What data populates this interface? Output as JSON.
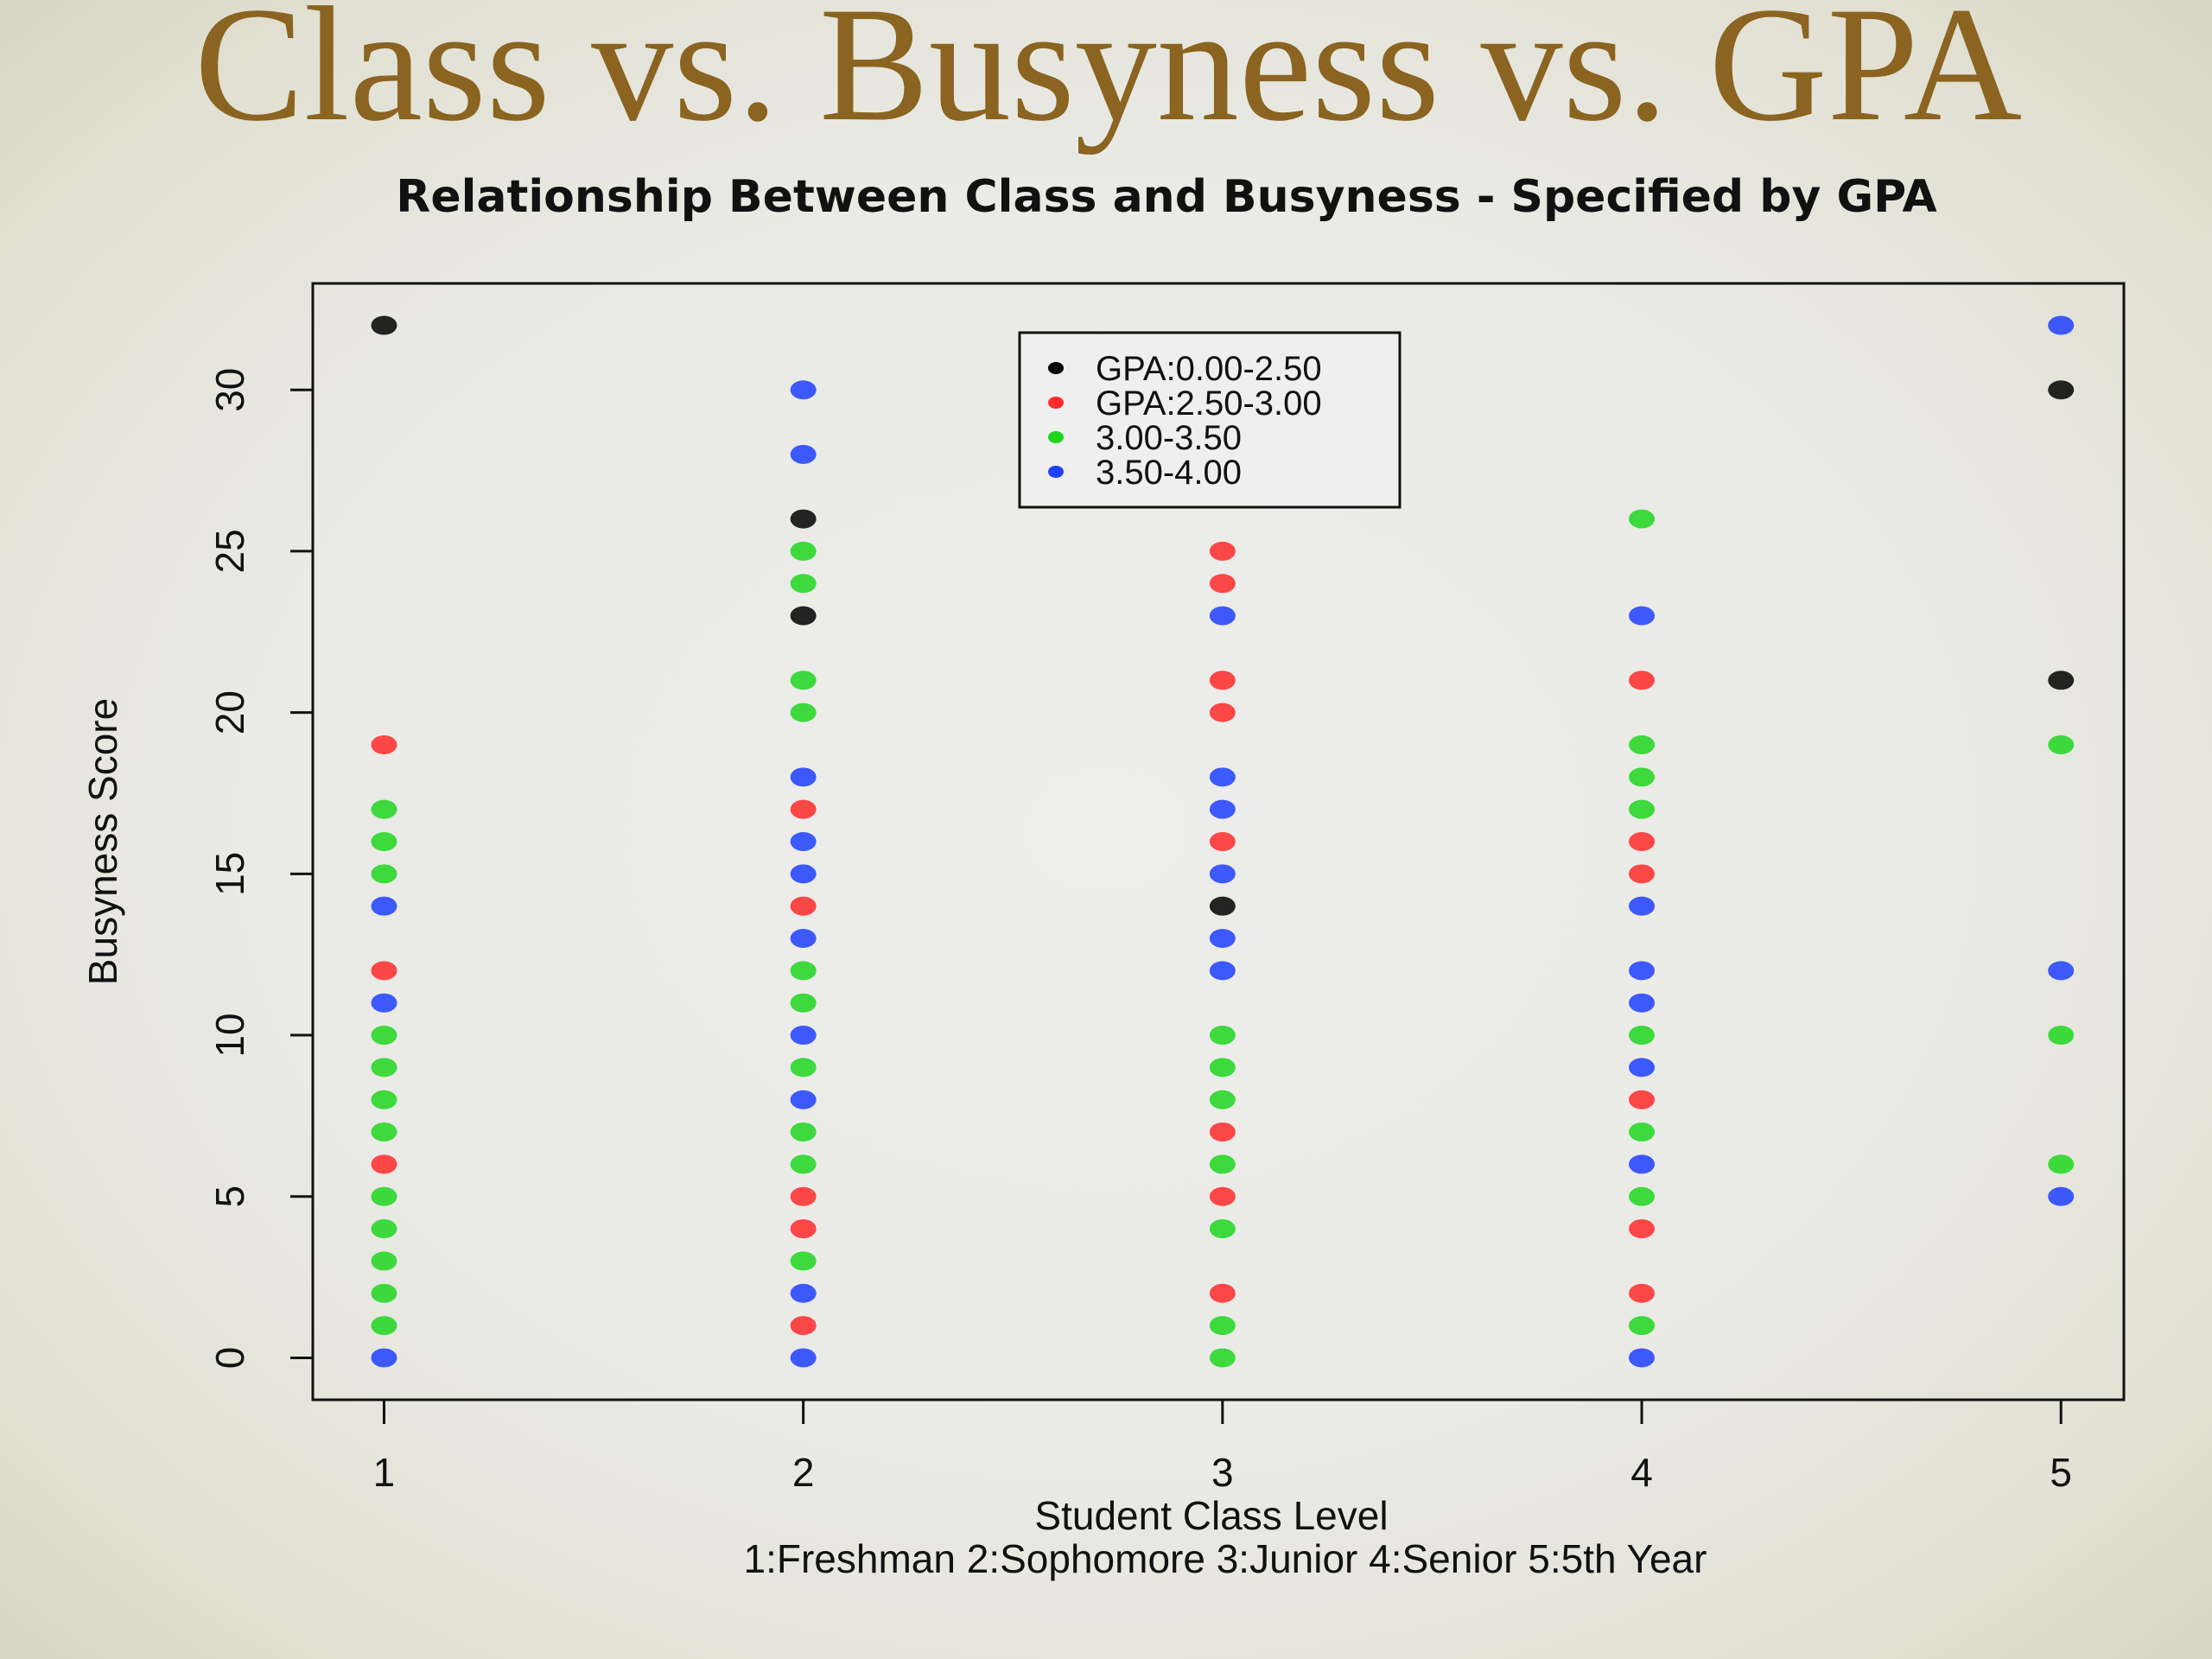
{
  "slide": {
    "title": "Class vs. Busyness vs. GPA"
  },
  "chart_data": {
    "type": "scatter",
    "title": "Relationship Between Class and Busyness - Specified by GPA",
    "xlabel": "Student Class Level",
    "xlabel_note": "1:Freshman 2:Sophomore 3:Junior 4:Senior 5:5th Year",
    "ylabel": "Busyness Score",
    "xlim": [
      0.83,
      5.15
    ],
    "ylim": [
      -1.3,
      33.3
    ],
    "x_ticks": [
      1,
      2,
      3,
      4,
      5
    ],
    "y_ticks": [
      0,
      5,
      10,
      15,
      20,
      25,
      30
    ],
    "grid": false,
    "legend_position": "top-center",
    "series": [
      {
        "name": "GPA:0.00-2.50",
        "color": "#000000",
        "points": [
          [
            1,
            32
          ],
          [
            2,
            26
          ],
          [
            2,
            23
          ],
          [
            3,
            14
          ],
          [
            5,
            30
          ],
          [
            5,
            21
          ]
        ]
      },
      {
        "name": "GPA:2.50-3.00",
        "color": "#ff2a2a",
        "points": [
          [
            1,
            19
          ],
          [
            1,
            12
          ],
          [
            1,
            6
          ],
          [
            2,
            17
          ],
          [
            2,
            14
          ],
          [
            2,
            5
          ],
          [
            2,
            4
          ],
          [
            2,
            1
          ],
          [
            3,
            25
          ],
          [
            3,
            24
          ],
          [
            3,
            21
          ],
          [
            3,
            20
          ],
          [
            3,
            16
          ],
          [
            3,
            7
          ],
          [
            3,
            5
          ],
          [
            3,
            2
          ],
          [
            4,
            21
          ],
          [
            4,
            16
          ],
          [
            4,
            15
          ],
          [
            4,
            8
          ],
          [
            4,
            4
          ],
          [
            4,
            2
          ]
        ]
      },
      {
        "name": "3.00-3.50",
        "color": "#1fd61f",
        "points": [
          [
            1,
            17
          ],
          [
            1,
            16
          ],
          [
            1,
            15
          ],
          [
            1,
            10
          ],
          [
            1,
            9
          ],
          [
            1,
            8
          ],
          [
            1,
            7
          ],
          [
            1,
            5
          ],
          [
            1,
            4
          ],
          [
            1,
            3
          ],
          [
            1,
            2
          ],
          [
            1,
            1
          ],
          [
            2,
            25
          ],
          [
            2,
            24
          ],
          [
            2,
            21
          ],
          [
            2,
            20
          ],
          [
            2,
            12
          ],
          [
            2,
            11
          ],
          [
            2,
            9
          ],
          [
            2,
            7
          ],
          [
            2,
            6
          ],
          [
            2,
            3
          ],
          [
            3,
            10
          ],
          [
            3,
            9
          ],
          [
            3,
            8
          ],
          [
            3,
            6
          ],
          [
            3,
            4
          ],
          [
            3,
            1
          ],
          [
            3,
            0
          ],
          [
            4,
            26
          ],
          [
            4,
            19
          ],
          [
            4,
            18
          ],
          [
            4,
            17
          ],
          [
            4,
            10
          ],
          [
            4,
            7
          ],
          [
            4,
            5
          ],
          [
            4,
            1
          ],
          [
            5,
            19
          ],
          [
            5,
            10
          ],
          [
            5,
            6
          ]
        ]
      },
      {
        "name": "3.50-4.00",
        "color": "#1f3fff",
        "points": [
          [
            1,
            14
          ],
          [
            1,
            11
          ],
          [
            1,
            0
          ],
          [
            2,
            30
          ],
          [
            2,
            28
          ],
          [
            2,
            18
          ],
          [
            2,
            16
          ],
          [
            2,
            15
          ],
          [
            2,
            13
          ],
          [
            2,
            10
          ],
          [
            2,
            8
          ],
          [
            2,
            2
          ],
          [
            2,
            0
          ],
          [
            3,
            23
          ],
          [
            3,
            18
          ],
          [
            3,
            17
          ],
          [
            3,
            15
          ],
          [
            3,
            13
          ],
          [
            3,
            12
          ],
          [
            4,
            23
          ],
          [
            4,
            14
          ],
          [
            4,
            12
          ],
          [
            4,
            11
          ],
          [
            4,
            9
          ],
          [
            4,
            6
          ],
          [
            4,
            0
          ],
          [
            5,
            32
          ],
          [
            5,
            12
          ],
          [
            5,
            5
          ]
        ]
      }
    ]
  }
}
